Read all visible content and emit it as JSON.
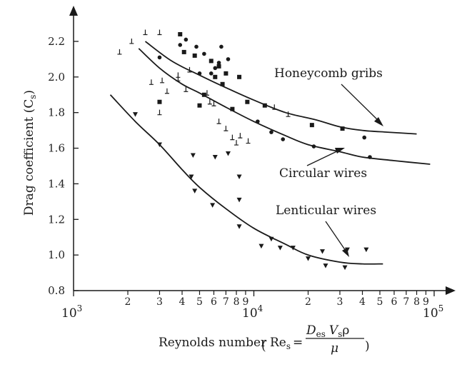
{
  "chart_data": {
    "type": "scatter",
    "xscale": "log",
    "xlim": [
      1000,
      100000
    ],
    "ylim": [
      0.8,
      2.26
    ],
    "x_decade_labels": [
      {
        "base": "10",
        "exp": "3"
      },
      {
        "base": "10",
        "exp": "4"
      },
      {
        "base": "10",
        "exp": "5"
      }
    ],
    "x_minor_labels": [
      {
        "value": 2000,
        "label": "2"
      },
      {
        "value": 3000,
        "label": "3"
      },
      {
        "value": 4000,
        "label": "4"
      },
      {
        "value": 5000,
        "label": "5"
      },
      {
        "value": 6000,
        "label": "6"
      },
      {
        "value": 7000,
        "label": "7"
      },
      {
        "value": 8000,
        "label": "8"
      },
      {
        "value": 9000,
        "label": "9"
      },
      {
        "value": 20000,
        "label": "2"
      },
      {
        "value": 30000,
        "label": "3"
      },
      {
        "value": 40000,
        "label": "4"
      },
      {
        "value": 50000,
        "label": "5"
      },
      {
        "value": 60000,
        "label": "6"
      },
      {
        "value": 70000,
        "label": "7"
      },
      {
        "value": 80000,
        "label": "8"
      },
      {
        "value": 90000,
        "label": "9"
      }
    ],
    "y_ticks": [
      {
        "value": 0.8,
        "label": "0.8"
      },
      {
        "value": 1.0,
        "label": "1.0"
      },
      {
        "value": 1.2,
        "label": "1.2"
      },
      {
        "value": 1.4,
        "label": "1.4"
      },
      {
        "value": 1.6,
        "label": "1.6"
      },
      {
        "value": 1.8,
        "label": "1.8"
      },
      {
        "value": 2.0,
        "label": "2.0"
      },
      {
        "value": 2.2,
        "label": "2.2"
      }
    ],
    "ylabel": "Drag coefficient (C",
    "ylabel_sub": "s",
    "ylabel_close": ")",
    "xlabel": {
      "prefix": "Reynolds number ",
      "re": "Re",
      "re_sub": "s",
      "eq": "=",
      "num_d": "D",
      "num_d_sub": "es",
      "num_v": "V",
      "num_v_sub": "s",
      "num_rho": "ρ",
      "den": "μ"
    },
    "series": [
      {
        "name": "Honeycomb gribs",
        "marker": "square",
        "curve": [
          [
            2500,
            2.2
          ],
          [
            3500,
            2.09
          ],
          [
            5000,
            2.01
          ],
          [
            7000,
            1.94
          ],
          [
            10000,
            1.87
          ],
          [
            15000,
            1.8
          ],
          [
            22000,
            1.76
          ],
          [
            30000,
            1.72
          ],
          [
            40000,
            1.7
          ],
          [
            55000,
            1.69
          ],
          [
            80000,
            1.68
          ]
        ],
        "points": [
          [
            3000,
            1.86
          ],
          [
            3900,
            2.24
          ],
          [
            4100,
            2.14
          ],
          [
            4700,
            2.12
          ],
          [
            5000,
            1.84
          ],
          [
            5300,
            1.9
          ],
          [
            5800,
            2.09
          ],
          [
            6100,
            2.0
          ],
          [
            6400,
            2.06
          ],
          [
            6700,
            1.96
          ],
          [
            7000,
            2.02
          ],
          [
            7600,
            1.82
          ],
          [
            8300,
            2.0
          ],
          [
            9200,
            1.86
          ],
          [
            11500,
            1.84
          ],
          [
            21000,
            1.73
          ],
          [
            31000,
            1.71
          ]
        ]
      },
      {
        "name": "Circular wires",
        "marker": "circle",
        "curve": [
          [
            2300,
            2.16
          ],
          [
            3000,
            2.05
          ],
          [
            4000,
            1.96
          ],
          [
            5000,
            1.91
          ],
          [
            7000,
            1.83
          ],
          [
            10000,
            1.75
          ],
          [
            15000,
            1.67
          ],
          [
            20000,
            1.62
          ],
          [
            30000,
            1.58
          ],
          [
            40000,
            1.55
          ],
          [
            60000,
            1.53
          ],
          [
            95000,
            1.51
          ]
        ],
        "points": [
          [
            3000,
            2.11
          ],
          [
            3900,
            2.18
          ],
          [
            4200,
            2.21
          ],
          [
            4800,
            2.17
          ],
          [
            5000,
            2.02
          ],
          [
            5300,
            2.13
          ],
          [
            5800,
            2.02
          ],
          [
            6100,
            2.05
          ],
          [
            6400,
            2.08
          ],
          [
            6600,
            2.17
          ],
          [
            7200,
            2.1
          ],
          [
            10500,
            1.75
          ],
          [
            12500,
            1.69
          ],
          [
            14500,
            1.65
          ],
          [
            21500,
            1.61
          ],
          [
            41000,
            1.66
          ],
          [
            44000,
            1.55
          ]
        ]
      },
      {
        "name": "Lenticular wires",
        "marker": "triangle-down",
        "curve": [
          [
            1600,
            1.9
          ],
          [
            2200,
            1.75
          ],
          [
            3000,
            1.62
          ],
          [
            4000,
            1.48
          ],
          [
            5000,
            1.38
          ],
          [
            7000,
            1.26
          ],
          [
            10000,
            1.15
          ],
          [
            15000,
            1.06
          ],
          [
            20000,
            1.0
          ],
          [
            30000,
            0.96
          ],
          [
            40000,
            0.95
          ],
          [
            52000,
            0.95
          ]
        ],
        "points": [
          [
            2200,
            1.79
          ],
          [
            3000,
            1.62
          ],
          [
            4500,
            1.44
          ],
          [
            4600,
            1.56
          ],
          [
            4700,
            1.36
          ],
          [
            5900,
            1.28
          ],
          [
            6100,
            1.55
          ],
          [
            7200,
            1.57
          ],
          [
            8300,
            1.44
          ],
          [
            8300,
            1.31
          ],
          [
            8300,
            1.16
          ],
          [
            11000,
            1.05
          ],
          [
            12500,
            1.09
          ],
          [
            14000,
            1.04
          ],
          [
            16500,
            1.04
          ],
          [
            20000,
            0.98
          ],
          [
            24000,
            1.02
          ],
          [
            25000,
            0.94
          ],
          [
            32000,
            0.93
          ],
          [
            33000,
            1.03
          ],
          [
            42000,
            1.03
          ]
        ]
      },
      {
        "name": "",
        "marker": "perp",
        "points": [
          [
            1800,
            2.14
          ],
          [
            2100,
            2.2
          ],
          [
            2500,
            2.25
          ],
          [
            3000,
            2.25
          ],
          [
            2700,
            1.97
          ],
          [
            3100,
            1.98
          ],
          [
            3300,
            1.92
          ],
          [
            3000,
            1.8
          ],
          [
            3800,
            1.99
          ],
          [
            3800,
            2.01
          ],
          [
            4200,
            1.93
          ],
          [
            4400,
            2.04
          ],
          [
            5500,
            1.91
          ],
          [
            5700,
            1.86
          ],
          [
            6000,
            1.85
          ],
          [
            6400,
            1.75
          ],
          [
            7000,
            1.71
          ],
          [
            7600,
            1.66
          ],
          [
            8000,
            1.63
          ],
          [
            8400,
            1.67
          ],
          [
            9300,
            1.64
          ],
          [
            13000,
            1.83
          ],
          [
            15500,
            1.79
          ]
        ]
      }
    ],
    "annotations": [
      {
        "text": "Honeycomb gribs",
        "target": [
          34000,
          1.7
        ]
      },
      {
        "text": "Circular wires",
        "target": [
          20000,
          1.62
        ]
      },
      {
        "text": "Lenticular wires",
        "target": [
          31000,
          0.95
        ]
      }
    ]
  }
}
